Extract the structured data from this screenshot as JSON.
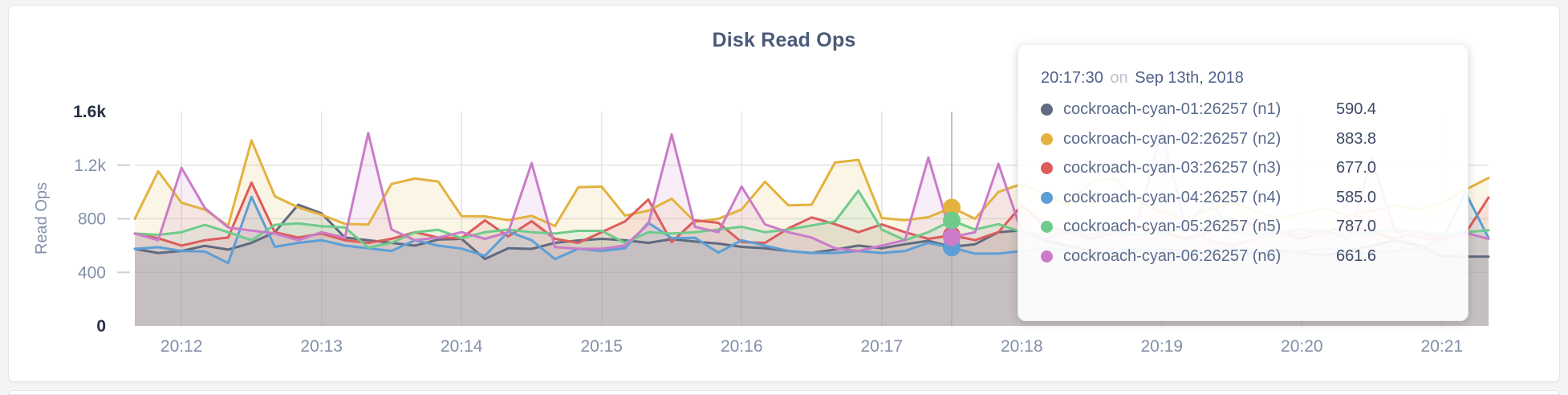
{
  "card": {
    "title": "Disk Read Ops"
  },
  "colors": {
    "grid": "#e4e4e4",
    "tick_dash": "#ccd0d8",
    "hover_line": "#adadad",
    "tick_text": "#8290a8",
    "tick_text_strong": "#262f43",
    "axis_label": "#8290a8",
    "title_text": "#4a5a78"
  },
  "tooltip": {
    "time": "20:17:30",
    "conjunction": "on",
    "date": "Sep 13th, 2018",
    "rows": [
      {
        "name": "cockroach-cyan-01:26257 (n1)",
        "value": "590.4",
        "color": "#606a80"
      },
      {
        "name": "cockroach-cyan-02:26257 (n2)",
        "value": "883.8",
        "color": "#e3b23f"
      },
      {
        "name": "cockroach-cyan-03:26257 (n3)",
        "value": "677.0",
        "color": "#dc5c5c"
      },
      {
        "name": "cockroach-cyan-04:26257 (n4)",
        "value": "585.0",
        "color": "#5c9fd6"
      },
      {
        "name": "cockroach-cyan-05:26257 (n5)",
        "value": "787.0",
        "color": "#6fcb8b"
      },
      {
        "name": "cockroach-cyan-06:26257 (n6)",
        "value": "661.6",
        "color": "#ca7cc8"
      }
    ]
  },
  "chart_data": {
    "type": "area",
    "title": "Disk Read Ops",
    "ylabel": "Read Ops",
    "ylim": [
      0,
      1600
    ],
    "grid": "on",
    "y_ticks": [
      {
        "label": "1.6k",
        "value": 1600,
        "strong": true,
        "dash": false
      },
      {
        "label": "1.2k",
        "value": 1200,
        "strong": false,
        "dash": true
      },
      {
        "label": "800",
        "value": 800,
        "strong": false,
        "dash": true
      },
      {
        "label": "400",
        "value": 400,
        "strong": false,
        "dash": true
      },
      {
        "label": "0",
        "value": 0,
        "strong": true,
        "dash": false
      }
    ],
    "x_start_time": "20:11:40",
    "x_interval_seconds": 10,
    "x_tick_labels": [
      "20:12",
      "20:13",
      "20:14",
      "20:15",
      "20:16",
      "20:17",
      "20:18",
      "20:19",
      "20:20",
      "20:21"
    ],
    "x_tick_first_index": 2,
    "x_tick_point_step": 6,
    "hover": {
      "time": "20:17:30",
      "index": 35
    },
    "series": [
      {
        "name": "cockroach-cyan-01:26257 (n1)",
        "color": "#606a80",
        "values": [
          575,
          545,
          560,
          598,
          570,
          620,
          700,
          905,
          840,
          660,
          640,
          620,
          600,
          645,
          650,
          500,
          580,
          575,
          620,
          638,
          650,
          640,
          620,
          648,
          630,
          615,
          590,
          580,
          560,
          545,
          570,
          600,
          580,
          610,
          636,
          590.4,
          610,
          700,
          713,
          640,
          600,
          560,
          540,
          555,
          570,
          560,
          545,
          530,
          550,
          565,
          545,
          525,
          560,
          600,
          640,
          600,
          520,
          518,
          518
        ]
      },
      {
        "name": "cockroach-cyan-02:26257 (n2)",
        "color": "#e3b23f",
        "values": [
          800,
          1155,
          920,
          868,
          748,
          1385,
          968,
          885,
          830,
          762,
          756,
          1060,
          1100,
          1078,
          820,
          818,
          790,
          822,
          746,
          1035,
          1040,
          824,
          860,
          950,
          776,
          800,
          870,
          1077,
          900,
          905,
          1220,
          1240,
          806,
          790,
          812,
          883.8,
          800,
          1000,
          1060,
          980,
          900,
          1080,
          1100,
          930,
          850,
          800,
          870,
          920,
          860,
          800,
          840,
          880,
          820,
          860,
          900,
          870,
          920,
          1015,
          1105
        ]
      },
      {
        "name": "cockroach-cyan-03:26257 (n3)",
        "color": "#dc5c5c",
        "values": [
          690,
          655,
          600,
          640,
          660,
          1070,
          700,
          660,
          690,
          640,
          620,
          650,
          700,
          660,
          655,
          788,
          668,
          782,
          650,
          620,
          700,
          780,
          944,
          626,
          788,
          770,
          626,
          620,
          728,
          810,
          760,
          700,
          758,
          700,
          650,
          677,
          640,
          700,
          900,
          750,
          700,
          650,
          700,
          750,
          700,
          650,
          700,
          800,
          750,
          700,
          650,
          700,
          750,
          700,
          650,
          700,
          650,
          688,
          958
        ]
      },
      {
        "name": "cockroach-cyan-04:26257 (n4)",
        "color": "#5c9fd6",
        "values": [
          575,
          588,
          560,
          556,
          470,
          963,
          590,
          620,
          640,
          600,
          580,
          560,
          640,
          600,
          577,
          523,
          704,
          640,
          499,
          577,
          560,
          580,
          770,
          656,
          658,
          547,
          640,
          600,
          560,
          545,
          545,
          560,
          545,
          560,
          620,
          585,
          540,
          540,
          560,
          580,
          560,
          540,
          560,
          580,
          560,
          540,
          560,
          580,
          560,
          540,
          560,
          580,
          560,
          540,
          560,
          580,
          640,
          1000,
          656
        ]
      },
      {
        "name": "cockroach-cyan-05:26257 (n5)",
        "color": "#6fcb8b",
        "values": [
          690,
          680,
          700,
          755,
          700,
          640,
          755,
          765,
          745,
          735,
          585,
          620,
          700,
          718,
          655,
          700,
          720,
          700,
          690,
          710,
          710,
          620,
          700,
          690,
          700,
          720,
          740,
          700,
          720,
          750,
          780,
          1010,
          720,
          640,
          700,
          787,
          720,
          760,
          700,
          680,
          700,
          720,
          700,
          680,
          700,
          720,
          950,
          700,
          680,
          700,
          720,
          700,
          680,
          700,
          720,
          700,
          680,
          700,
          715
        ]
      },
      {
        "name": "cockroach-cyan-06:26257 (n6)",
        "color": "#ca7cc8",
        "values": [
          690,
          640,
          1180,
          880,
          735,
          712,
          690,
          640,
          700,
          660,
          1440,
          720,
          640,
          660,
          700,
          650,
          700,
          1215,
          589,
          577,
          576,
          600,
          760,
          1430,
          740,
          700,
          1040,
          758,
          700,
          660,
          580,
          560,
          600,
          640,
          1257,
          661.6,
          700,
          1210,
          700,
          650,
          700,
          680,
          720,
          800,
          1460,
          760,
          640,
          600,
          650,
          700,
          680,
          720,
          650,
          1250,
          700,
          660,
          640,
          696,
          650
        ]
      }
    ]
  }
}
